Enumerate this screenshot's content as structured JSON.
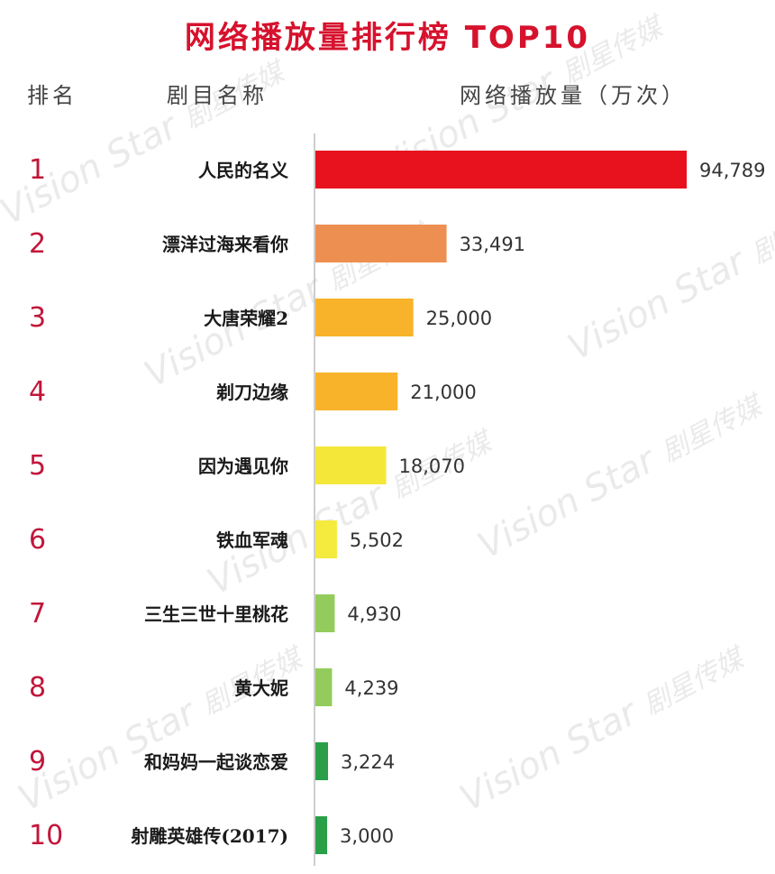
{
  "header": {
    "title": "网络播放量排行榜 TOP10",
    "rank_label": "排名",
    "name_label": "剧目名称",
    "value_label": "网络播放量（万次）"
  },
  "watermark": {
    "text_en": "Vision Star",
    "text_cn": "剧星传媒"
  },
  "colors": {
    "title": "#d6122d",
    "rank": "#c2163a",
    "axis": "#bdbdbd"
  },
  "chart_data": {
    "type": "bar",
    "orientation": "horizontal",
    "title": "网络播放量排行榜 TOP10",
    "xlabel": "网络播放量（万次）",
    "ylabel": "剧目名称",
    "xlim": [
      0,
      94789
    ],
    "grid": false,
    "legend": "none",
    "ranks": [
      "1",
      "2",
      "3",
      "4",
      "5",
      "6",
      "7",
      "8",
      "9",
      "10"
    ],
    "categories": [
      "人民的名义",
      "漂洋过海来看你",
      "大唐荣耀2",
      "剃刀边缘",
      "因为遇见你",
      "铁血军魂",
      "三生三世十里桃花",
      "黄大妮",
      "和妈妈一起谈恋爱",
      "射雕英雄传(2017)"
    ],
    "values": [
      94789,
      33491,
      25000,
      21000,
      18070,
      5502,
      4930,
      4239,
      3224,
      3000
    ],
    "value_labels": [
      "94,789",
      "33,491",
      "25,000",
      "21,000",
      "18,070",
      "5,502",
      "4,930",
      "4,239",
      "3,224",
      "3,000"
    ],
    "bar_colors": [
      "#e8121f",
      "#ee8f52",
      "#f8b32a",
      "#f8b32a",
      "#f5e63a",
      "#f5ea3e",
      "#93cc5c",
      "#93cc5c",
      "#2a9f48",
      "#2a9f48"
    ]
  }
}
